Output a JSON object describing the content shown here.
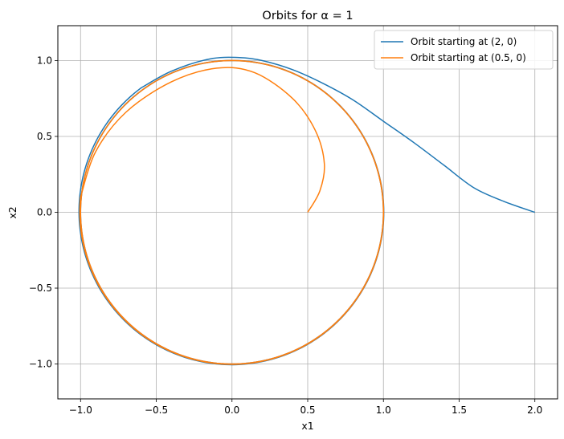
{
  "chart_data": {
    "type": "line",
    "title": "Orbits for α = 1",
    "xlabel": "x1",
    "ylabel": "x2",
    "xlim": [
      -1.15,
      2.15
    ],
    "ylim": [
      -1.23,
      1.23
    ],
    "x_ticks": [
      -1.0,
      -0.5,
      0.0,
      0.5,
      1.0,
      1.5,
      2.0
    ],
    "x_tick_labels": [
      "−1.0",
      "−0.5",
      "0.0",
      "0.5",
      "1.0",
      "1.5",
      "2.0"
    ],
    "y_ticks": [
      -1.0,
      -0.5,
      0.0,
      0.5,
      1.0
    ],
    "y_tick_labels": [
      "−1.0",
      "−0.5",
      "0.0",
      "0.5",
      "1.0"
    ],
    "grid": true,
    "legend_position": "top-right",
    "series": [
      {
        "name": "Orbit starting at (2, 0)",
        "color": "#1f77b4",
        "points": [
          [
            2.0,
            0.0
          ],
          [
            1.8,
            0.07
          ],
          [
            1.6,
            0.16
          ],
          [
            1.4,
            0.31
          ],
          [
            1.2,
            0.46
          ],
          [
            1.0,
            0.6
          ],
          [
            0.8,
            0.74
          ],
          [
            0.6,
            0.85
          ],
          [
            0.4,
            0.94
          ],
          [
            0.2,
            1.0
          ],
          [
            0.05,
            1.02
          ],
          [
            -0.15,
            1.01
          ],
          [
            -0.4,
            0.93
          ],
          [
            -0.6,
            0.82
          ]
        ]
      },
      {
        "name": "Orbit starting at (0.5, 0)",
        "color": "#ff7f0e",
        "points": [
          [
            0.5,
            0.0
          ],
          [
            0.58,
            0.14
          ],
          [
            0.61,
            0.32
          ],
          [
            0.55,
            0.54
          ],
          [
            0.4,
            0.75
          ],
          [
            0.15,
            0.92
          ],
          [
            -0.1,
            0.95
          ],
          [
            -0.4,
            0.86
          ],
          [
            -0.7,
            0.66
          ],
          [
            -0.9,
            0.4
          ],
          [
            -1.0,
            0.1
          ]
        ]
      }
    ]
  }
}
